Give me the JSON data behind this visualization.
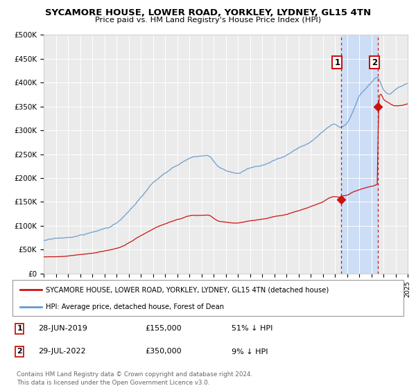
{
  "title": "SYCAMORE HOUSE, LOWER ROAD, YORKLEY, LYDNEY, GL15 4TN",
  "subtitle": "Price paid vs. HM Land Registry's House Price Index (HPI)",
  "ylim": [
    0,
    500000
  ],
  "xlim_start": 1995,
  "xlim_end": 2025,
  "yticks": [
    0,
    50000,
    100000,
    150000,
    200000,
    250000,
    300000,
    350000,
    400000,
    450000,
    500000
  ],
  "ytick_labels": [
    "£0",
    "£50K",
    "£100K",
    "£150K",
    "£200K",
    "£250K",
    "£300K",
    "£350K",
    "£400K",
    "£450K",
    "£500K"
  ],
  "hpi_color": "#6699cc",
  "price_color": "#cc1111",
  "event1_date": 2019.49,
  "event2_date": 2022.57,
  "event1_price": 155000,
  "event2_price": 350000,
  "legend_label_price": "SYCAMORE HOUSE, LOWER ROAD, YORKLEY, LYDNEY, GL15 4TN (detached house)",
  "legend_label_hpi": "HPI: Average price, detached house, Forest of Dean",
  "table_row1": [
    "1",
    "28-JUN-2019",
    "£155,000",
    "51% ↓ HPI"
  ],
  "table_row2": [
    "2",
    "29-JUL-2022",
    "£350,000",
    "9% ↓ HPI"
  ],
  "footnote1": "Contains HM Land Registry data © Crown copyright and database right 2024.",
  "footnote2": "This data is licensed under the Open Government Licence v3.0.",
  "background_color": "#ffffff",
  "plot_bg_color": "#ebebeb",
  "grid_color": "#ffffff",
  "shade_color": "#ccddf5"
}
